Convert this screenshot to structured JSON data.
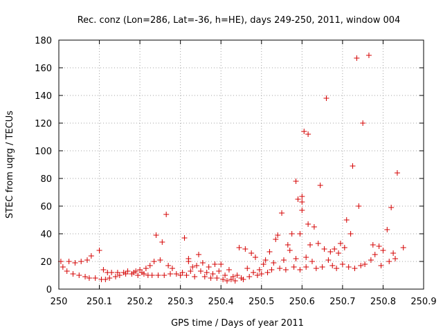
{
  "chart_data": {
    "type": "scatter",
    "title": "Rec. conz (Lon=286, Lat=-36, h=HE), days 249-250, 2011, window 004",
    "xlabel": "GPS time / Days of year 2011",
    "ylabel": "STEC from uqrg / TECUs",
    "xlim": [
      250,
      250.9
    ],
    "ylim": [
      0,
      180
    ],
    "xticks": [
      "250",
      "250.1",
      "250.2",
      "250.3",
      "250.4",
      "250.5",
      "250.6",
      "250.7",
      "250.8",
      "250.9"
    ],
    "yticks": [
      "0",
      "20",
      "40",
      "60",
      "80",
      "100",
      "120",
      "140",
      "160",
      "180"
    ],
    "grid": true,
    "marker": "plus",
    "series": [
      {
        "color": "#d40000",
        "points": [
          [
            250.005,
            20
          ],
          [
            250.01,
            16
          ],
          [
            250.02,
            13
          ],
          [
            250.025,
            20
          ],
          [
            250.035,
            11
          ],
          [
            250.04,
            19
          ],
          [
            250.05,
            10
          ],
          [
            250.055,
            20
          ],
          [
            250.065,
            9
          ],
          [
            250.07,
            21
          ],
          [
            250.075,
            8
          ],
          [
            250.08,
            24
          ],
          [
            250.09,
            8
          ],
          [
            250.1,
            28
          ],
          [
            250.105,
            7
          ],
          [
            250.11,
            14
          ],
          [
            250.115,
            7
          ],
          [
            250.12,
            12
          ],
          [
            250.125,
            8
          ],
          [
            250.13,
            12
          ],
          [
            250.14,
            9
          ],
          [
            250.145,
            12
          ],
          [
            250.15,
            10
          ],
          [
            250.16,
            12
          ],
          [
            250.165,
            11
          ],
          [
            250.17,
            13
          ],
          [
            250.18,
            11
          ],
          [
            250.185,
            12
          ],
          [
            250.19,
            13
          ],
          [
            250.195,
            10
          ],
          [
            250.2,
            14
          ],
          [
            250.205,
            12
          ],
          [
            250.21,
            11
          ],
          [
            250.215,
            15
          ],
          [
            250.22,
            10
          ],
          [
            250.225,
            17
          ],
          [
            250.23,
            10
          ],
          [
            250.235,
            20
          ],
          [
            250.24,
            39
          ],
          [
            250.245,
            10
          ],
          [
            250.25,
            21
          ],
          [
            250.255,
            34
          ],
          [
            250.26,
            10
          ],
          [
            250.265,
            54
          ],
          [
            250.27,
            17
          ],
          [
            250.275,
            11
          ],
          [
            250.28,
            15
          ],
          [
            250.29,
            11
          ],
          [
            250.3,
            10
          ],
          [
            250.305,
            12
          ],
          [
            250.31,
            37
          ],
          [
            250.315,
            10
          ],
          [
            250.32,
            20
          ],
          [
            250.32,
            22
          ],
          [
            250.325,
            13
          ],
          [
            250.33,
            16
          ],
          [
            250.335,
            9
          ],
          [
            250.34,
            17
          ],
          [
            250.345,
            25
          ],
          [
            250.35,
            13
          ],
          [
            250.355,
            19
          ],
          [
            250.36,
            9
          ],
          [
            250.365,
            12
          ],
          [
            250.37,
            16
          ],
          [
            250.375,
            8
          ],
          [
            250.38,
            11
          ],
          [
            250.385,
            18
          ],
          [
            250.39,
            8
          ],
          [
            250.395,
            13
          ],
          [
            250.4,
            18
          ],
          [
            250.405,
            7
          ],
          [
            250.41,
            10
          ],
          [
            250.415,
            6
          ],
          [
            250.42,
            14
          ],
          [
            250.425,
            7
          ],
          [
            250.43,
            9
          ],
          [
            250.435,
            6
          ],
          [
            250.44,
            10
          ],
          [
            250.445,
            30
          ],
          [
            250.45,
            8
          ],
          [
            250.455,
            7
          ],
          [
            250.46,
            29
          ],
          [
            250.465,
            15
          ],
          [
            250.47,
            9
          ],
          [
            250.475,
            26
          ],
          [
            250.48,
            12
          ],
          [
            250.485,
            23
          ],
          [
            250.49,
            10
          ],
          [
            250.495,
            14
          ],
          [
            250.5,
            11
          ],
          [
            250.505,
            18
          ],
          [
            250.51,
            21
          ],
          [
            250.515,
            12
          ],
          [
            250.52,
            27
          ],
          [
            250.525,
            14
          ],
          [
            250.53,
            19
          ],
          [
            250.535,
            36
          ],
          [
            250.54,
            39
          ],
          [
            250.545,
            15
          ],
          [
            250.55,
            55
          ],
          [
            250.555,
            21
          ],
          [
            250.56,
            14
          ],
          [
            250.565,
            32
          ],
          [
            250.57,
            28
          ],
          [
            250.575,
            40
          ],
          [
            250.58,
            16
          ],
          [
            250.585,
            22
          ],
          [
            250.585,
            78
          ],
          [
            250.59,
            65
          ],
          [
            250.595,
            40
          ],
          [
            250.595,
            14
          ],
          [
            250.6,
            57
          ],
          [
            250.6,
            63
          ],
          [
            250.6,
            67
          ],
          [
            250.605,
            114
          ],
          [
            250.61,
            16
          ],
          [
            250.61,
            23
          ],
          [
            250.615,
            47
          ],
          [
            250.615,
            112
          ],
          [
            250.62,
            32
          ],
          [
            250.625,
            20
          ],
          [
            250.63,
            45
          ],
          [
            250.635,
            15
          ],
          [
            250.64,
            33
          ],
          [
            250.645,
            75
          ],
          [
            250.65,
            16
          ],
          [
            250.655,
            29
          ],
          [
            250.66,
            138
          ],
          [
            250.665,
            21
          ],
          [
            250.67,
            27
          ],
          [
            250.675,
            17
          ],
          [
            250.68,
            29
          ],
          [
            250.685,
            15
          ],
          [
            250.69,
            26
          ],
          [
            250.695,
            33
          ],
          [
            250.7,
            18
          ],
          [
            250.705,
            30
          ],
          [
            250.71,
            50
          ],
          [
            250.715,
            16
          ],
          [
            250.72,
            40
          ],
          [
            250.725,
            89
          ],
          [
            250.73,
            15
          ],
          [
            250.735,
            167
          ],
          [
            250.74,
            60
          ],
          [
            250.745,
            17
          ],
          [
            250.75,
            120
          ],
          [
            250.755,
            18
          ],
          [
            250.765,
            169
          ],
          [
            250.77,
            21
          ],
          [
            250.775,
            32
          ],
          [
            250.78,
            25
          ],
          [
            250.79,
            31
          ],
          [
            250.795,
            17
          ],
          [
            250.8,
            28
          ],
          [
            250.81,
            43
          ],
          [
            250.815,
            20
          ],
          [
            250.82,
            59
          ],
          [
            250.825,
            26
          ],
          [
            250.83,
            22
          ],
          [
            250.835,
            84
          ],
          [
            250.85,
            30
          ]
        ]
      }
    ]
  }
}
